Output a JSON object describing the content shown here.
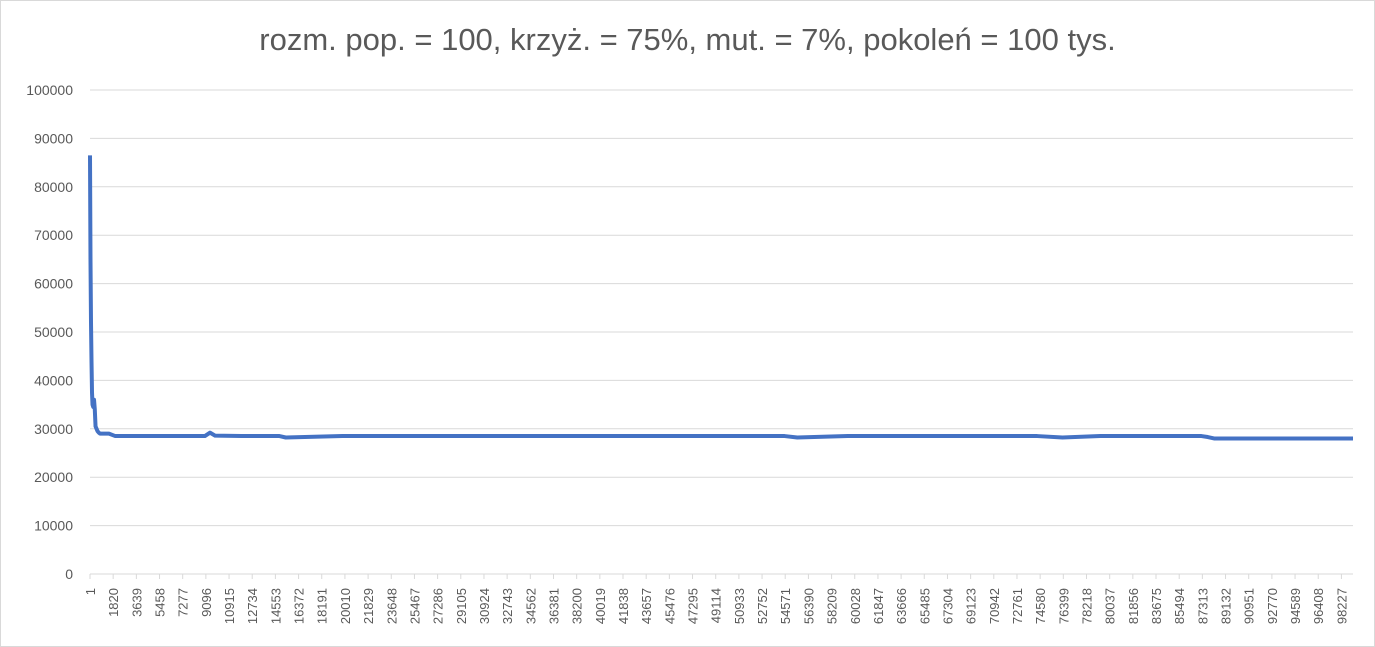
{
  "chart_data": {
    "type": "line",
    "title": "rozm. pop. = 100, krzyż. =  75%, mut. = 7%, pokoleń = 100 tys.",
    "xlabel": "",
    "ylabel": "",
    "ylim": [
      0,
      100000
    ],
    "xlim": [
      1,
      100000
    ],
    "y_ticks": [
      0,
      10000,
      20000,
      30000,
      40000,
      50000,
      60000,
      70000,
      80000,
      90000,
      100000
    ],
    "x_tick_labels": [
      "1",
      "1820",
      "3639",
      "5458",
      "7277",
      "9096",
      "10915",
      "12734",
      "14553",
      "16372",
      "18191",
      "20010",
      "21829",
      "23648",
      "25467",
      "27286",
      "29105",
      "30924",
      "32743",
      "34562",
      "36381",
      "38200",
      "40019",
      "41838",
      "43657",
      "45476",
      "47295",
      "49114",
      "50933",
      "52752",
      "54571",
      "56390",
      "58209",
      "60028",
      "61847",
      "63666",
      "65485",
      "67304",
      "69123",
      "70942",
      "72761",
      "74580",
      "76399",
      "78218",
      "80037",
      "81856",
      "83675",
      "85494",
      "87313",
      "89132",
      "90951",
      "92770",
      "94589",
      "96408",
      "98227"
    ],
    "grid": true,
    "legend": "none",
    "series": [
      {
        "color": "#4472c4",
        "x": [
          1,
          40,
          80,
          120,
          160,
          200,
          260,
          320,
          380,
          440,
          520,
          600,
          700,
          800,
          900,
          1000,
          1200,
          1500,
          2000,
          3000,
          5000,
          9096,
          9500,
          9900,
          12000,
          15000,
          15500,
          20000,
          25000,
          30000,
          35000,
          40000,
          45000,
          50000,
          55000,
          56000,
          60000,
          65000,
          70000,
          75000,
          77000,
          80000,
          85000,
          88000,
          88500,
          89000,
          92000,
          95000,
          98000,
          100000
        ],
        "y": [
          86500,
          65000,
          52000,
          44000,
          37500,
          35000,
          34500,
          36000,
          34000,
          30500,
          30000,
          29500,
          29200,
          29000,
          29000,
          29000,
          29000,
          29000,
          28500,
          28500,
          28500,
          28500,
          29200,
          28600,
          28500,
          28500,
          28200,
          28500,
          28500,
          28500,
          28500,
          28500,
          28500,
          28500,
          28500,
          28200,
          28500,
          28500,
          28500,
          28500,
          28200,
          28500,
          28500,
          28500,
          28300,
          28000,
          28000,
          28000,
          28000,
          28000
        ]
      }
    ]
  }
}
